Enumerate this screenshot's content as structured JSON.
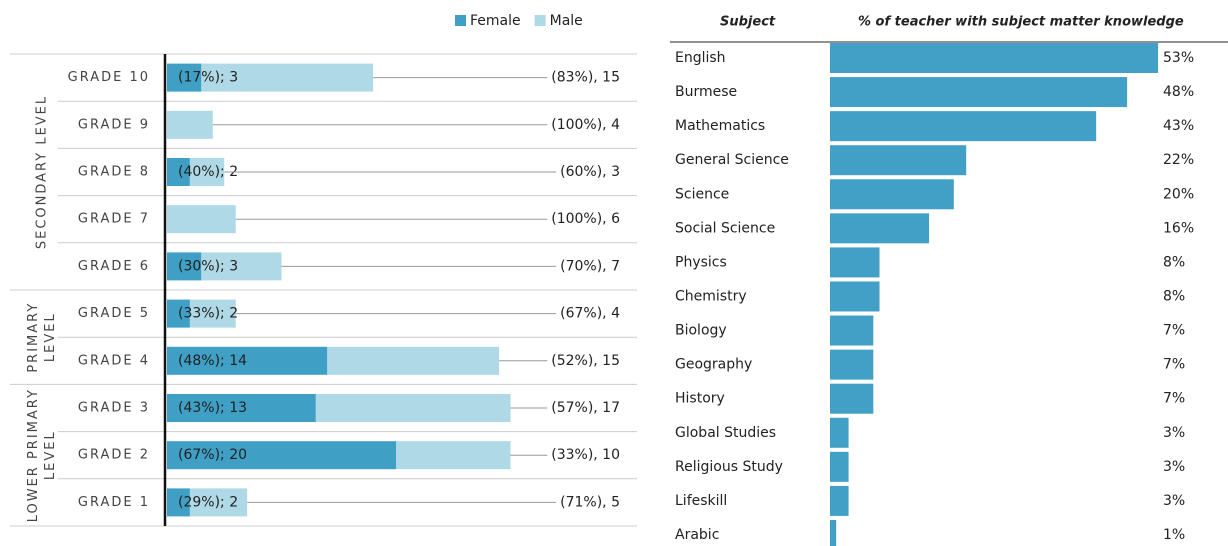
{
  "chart_data": [
    {
      "type": "stacked_hbar",
      "groups": [
        {
          "label": [
            "SECONDARY LEVEL"
          ],
          "categories": [
            "GRADE 10",
            "GRADE 9",
            "GRADE 8",
            "GRADE 7",
            "GRADE 6"
          ]
        },
        {
          "label": [
            "PRIMARY",
            "LEVEL"
          ],
          "categories": [
            "GRADE 5",
            "GRADE 4"
          ]
        },
        {
          "label": [
            "LOWER PRIMARY",
            "LEVEL"
          ],
          "categories": [
            "GRADE 3",
            "GRADE 2",
            "GRADE 1"
          ]
        }
      ],
      "series": [
        {
          "name": "Female",
          "color": "#3f9fc5",
          "values": [
            3,
            0,
            2,
            0,
            3,
            2,
            14,
            13,
            20,
            2
          ],
          "value_labels": [
            "(17%); 3",
            null,
            "(40%); 2",
            null,
            "(30%); 3",
            "(33%); 2",
            "(48%); 14",
            "(43%); 13",
            "(67%); 20",
            "(29%); 2"
          ]
        },
        {
          "name": "Male",
          "color": "#afd9e6",
          "values": [
            15,
            4,
            3,
            6,
            7,
            4,
            15,
            17,
            10,
            5
          ],
          "value_labels": [
            "(83%), 15",
            "(100%), 4",
            "(60%), 3",
            "(100%), 6",
            "(70%), 7",
            "(67%), 4",
            "(52%), 15",
            "(57%), 17",
            "(33%), 10",
            "(71%), 5"
          ]
        }
      ]
    },
    {
      "type": "hbar",
      "headers": [
        "Subject",
        "% of teacher with subject matter knowledge"
      ],
      "color": "#42a0c6",
      "categories": [
        "English",
        "Burmese",
        "Mathematics",
        "General Science",
        "Science",
        "Social Science",
        "Physics",
        "Chemistry",
        "Biology",
        "Geography",
        "History",
        "Global Studies",
        "Religious Study",
        "Lifeskill",
        "Arabic"
      ],
      "values": [
        53,
        48,
        43,
        22,
        20,
        16,
        8,
        8,
        7,
        7,
        7,
        3,
        3,
        3,
        1
      ],
      "value_labels": [
        "53%",
        "48%",
        "43%",
        "22%",
        "20%",
        "16%",
        "8%",
        "8%",
        "7%",
        "7%",
        "7%",
        "3%",
        "3%",
        "3%",
        "1%"
      ]
    }
  ]
}
